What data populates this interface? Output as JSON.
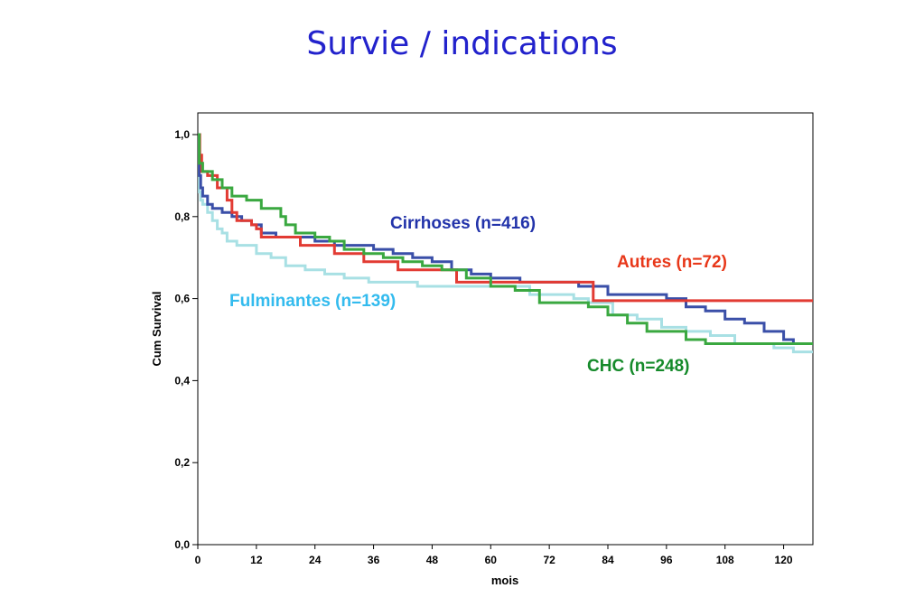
{
  "slide": {
    "title": "Survie / indications"
  },
  "chart_data": {
    "type": "line",
    "step": true,
    "xlabel": "mois",
    "ylabel": "Cum Survival",
    "xlim": [
      0,
      126
    ],
    "ylim": [
      0.0,
      1.0
    ],
    "x_ticks": [
      0,
      12,
      24,
      36,
      48,
      60,
      72,
      84,
      96,
      108,
      120
    ],
    "y_ticks": [
      0.0,
      0.2,
      0.4,
      0.6,
      0.8,
      1.0
    ],
    "y_tick_labels": [
      "0,0",
      "0,2",
      "0,4",
      "0,6",
      "0,8",
      "1,0"
    ],
    "grid": false,
    "series": [
      {
        "name": "Fulminantes (n=139)",
        "color": "#a8e0e4",
        "label_color": "#33bbee",
        "points": [
          [
            0,
            1.0
          ],
          [
            0.3,
            0.86
          ],
          [
            0.6,
            0.84
          ],
          [
            1,
            0.83
          ],
          [
            2,
            0.81
          ],
          [
            3,
            0.79
          ],
          [
            4,
            0.77
          ],
          [
            5,
            0.76
          ],
          [
            6,
            0.74
          ],
          [
            8,
            0.73
          ],
          [
            10,
            0.73
          ],
          [
            12,
            0.71
          ],
          [
            15,
            0.7
          ],
          [
            18,
            0.68
          ],
          [
            22,
            0.67
          ],
          [
            26,
            0.66
          ],
          [
            30,
            0.65
          ],
          [
            35,
            0.64
          ],
          [
            45,
            0.63
          ],
          [
            60,
            0.63
          ],
          [
            68,
            0.61
          ],
          [
            77,
            0.6
          ],
          [
            80,
            0.59
          ],
          [
            85,
            0.56
          ],
          [
            90,
            0.55
          ],
          [
            95,
            0.53
          ],
          [
            100,
            0.52
          ],
          [
            105,
            0.51
          ],
          [
            110,
            0.49
          ],
          [
            118,
            0.48
          ],
          [
            122,
            0.47
          ],
          [
            126,
            0.47
          ]
        ]
      },
      {
        "name": "Cirrhoses (n=416)",
        "color": "#3a4fa8",
        "label_color": "#2233aa",
        "points": [
          [
            0,
            1.0
          ],
          [
            0.3,
            0.9
          ],
          [
            0.6,
            0.87
          ],
          [
            1,
            0.85
          ],
          [
            2,
            0.83
          ],
          [
            3,
            0.82
          ],
          [
            5,
            0.81
          ],
          [
            7,
            0.8
          ],
          [
            9,
            0.79
          ],
          [
            11,
            0.78
          ],
          [
            13,
            0.76
          ],
          [
            16,
            0.75
          ],
          [
            20,
            0.75
          ],
          [
            24,
            0.74
          ],
          [
            28,
            0.73
          ],
          [
            32,
            0.73
          ],
          [
            36,
            0.72
          ],
          [
            40,
            0.71
          ],
          [
            44,
            0.7
          ],
          [
            48,
            0.69
          ],
          [
            52,
            0.67
          ],
          [
            56,
            0.66
          ],
          [
            60,
            0.65
          ],
          [
            66,
            0.64
          ],
          [
            72,
            0.64
          ],
          [
            78,
            0.63
          ],
          [
            84,
            0.61
          ],
          [
            90,
            0.61
          ],
          [
            96,
            0.6
          ],
          [
            100,
            0.58
          ],
          [
            104,
            0.57
          ],
          [
            108,
            0.55
          ],
          [
            112,
            0.54
          ],
          [
            116,
            0.52
          ],
          [
            120,
            0.5
          ],
          [
            122,
            0.49
          ],
          [
            126,
            0.49
          ]
        ]
      },
      {
        "name": "Autres (n=72)",
        "color": "#e23b33",
        "label_color": "#e8381a",
        "points": [
          [
            0,
            1.0
          ],
          [
            0.4,
            0.95
          ],
          [
            0.8,
            0.91
          ],
          [
            2,
            0.9
          ],
          [
            4,
            0.87
          ],
          [
            6,
            0.84
          ],
          [
            7,
            0.81
          ],
          [
            8,
            0.79
          ],
          [
            11,
            0.78
          ],
          [
            12,
            0.77
          ],
          [
            13,
            0.75
          ],
          [
            17,
            0.75
          ],
          [
            20,
            0.75
          ],
          [
            21,
            0.73
          ],
          [
            27,
            0.73
          ],
          [
            28,
            0.71
          ],
          [
            33,
            0.71
          ],
          [
            34,
            0.69
          ],
          [
            40,
            0.69
          ],
          [
            41,
            0.67
          ],
          [
            47,
            0.67
          ],
          [
            53,
            0.64
          ],
          [
            60,
            0.64
          ],
          [
            70,
            0.64
          ],
          [
            81,
            0.64
          ],
          [
            81,
            0.595
          ],
          [
            126,
            0.595
          ]
        ]
      },
      {
        "name": "CHC (n=248)",
        "color": "#3aa840",
        "label_color": "#158a2a",
        "points": [
          [
            0,
            1.0
          ],
          [
            0.3,
            0.93
          ],
          [
            1,
            0.91
          ],
          [
            3,
            0.89
          ],
          [
            5,
            0.87
          ],
          [
            7,
            0.85
          ],
          [
            10,
            0.84
          ],
          [
            13,
            0.82
          ],
          [
            17,
            0.8
          ],
          [
            18,
            0.78
          ],
          [
            20,
            0.76
          ],
          [
            24,
            0.75
          ],
          [
            27,
            0.74
          ],
          [
            30,
            0.72
          ],
          [
            34,
            0.71
          ],
          [
            38,
            0.7
          ],
          [
            42,
            0.69
          ],
          [
            46,
            0.68
          ],
          [
            50,
            0.67
          ],
          [
            55,
            0.65
          ],
          [
            60,
            0.63
          ],
          [
            65,
            0.62
          ],
          [
            70,
            0.59
          ],
          [
            76,
            0.59
          ],
          [
            80,
            0.58
          ],
          [
            84,
            0.56
          ],
          [
            88,
            0.54
          ],
          [
            92,
            0.52
          ],
          [
            100,
            0.5
          ],
          [
            104,
            0.49
          ],
          [
            110,
            0.49
          ],
          [
            126,
            0.49
          ]
        ]
      }
    ]
  }
}
